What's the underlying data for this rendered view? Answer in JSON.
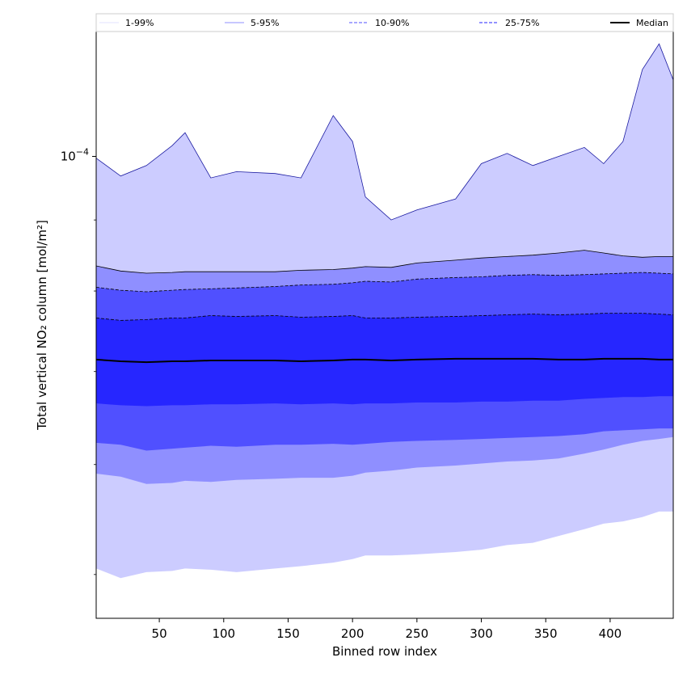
{
  "chart_data": {
    "type": "area",
    "xlabel": "Binned row index",
    "ylabel": "Total vertical NO₂ column [mol/m²]",
    "y_scale": "log",
    "xlim": [
      1,
      449
    ],
    "ylim": [
      4.65e-05,
      0.000123
    ],
    "x_ticks": [
      50,
      100,
      150,
      200,
      250,
      300,
      350,
      400
    ],
    "y_tick_labels": [
      {
        "base": "10",
        "exp": "−4",
        "value": 0.0001
      }
    ],
    "y_minor_ticks": [
      5e-05,
      6e-05,
      7e-05,
      8e-05,
      9e-05
    ],
    "grid": false,
    "legend_position": "top",
    "x": [
      1,
      20,
      40,
      60,
      70,
      90,
      110,
      140,
      160,
      185,
      200,
      210,
      230,
      250,
      280,
      300,
      320,
      340,
      360,
      380,
      395,
      410,
      425,
      438,
      449
    ],
    "series": [
      {
        "name": "1-99%",
        "color": "#ccccff",
        "line_style": "solid",
        "upper": [
          9.97e-05,
          9.68e-05,
          9.85e-05,
          0.0001018,
          0.000104,
          9.65e-05,
          9.75e-05,
          9.72e-05,
          9.65e-05,
          0.000107,
          0.0001025,
          9.35e-05,
          9e-05,
          9.15e-05,
          9.32e-05,
          9.88e-05,
          0.0001005,
          9.85e-05,
          0.0001,
          0.0001015,
          9.88e-05,
          0.0001025,
          0.0001155,
          0.0001205,
          0.0001135
        ],
        "lower": [
          5.05e-05,
          4.97e-05,
          5.02e-05,
          5.03e-05,
          5.05e-05,
          5.04e-05,
          5.02e-05,
          5.05e-05,
          5.07e-05,
          5.1e-05,
          5.13e-05,
          5.16e-05,
          5.16e-05,
          5.17e-05,
          5.19e-05,
          5.21e-05,
          5.25e-05,
          5.27e-05,
          5.33e-05,
          5.39e-05,
          5.44e-05,
          5.46e-05,
          5.5e-05,
          5.55e-05,
          5.55e-05
        ]
      },
      {
        "name": "5-95%",
        "color": "#8f8fff",
        "line_style": "solid",
        "upper": [
          8.34e-05,
          8.27e-05,
          8.24e-05,
          8.25e-05,
          8.26e-05,
          8.26e-05,
          8.26e-05,
          8.26e-05,
          8.28e-05,
          8.29e-05,
          8.31e-05,
          8.33e-05,
          8.32e-05,
          8.38e-05,
          8.42e-05,
          8.45e-05,
          8.47e-05,
          8.49e-05,
          8.52e-05,
          8.56e-05,
          8.52e-05,
          8.48e-05,
          8.46e-05,
          8.47e-05,
          8.47e-05
        ],
        "lower": [
          5.91e-05,
          5.88e-05,
          5.81e-05,
          5.82e-05,
          5.84e-05,
          5.83e-05,
          5.85e-05,
          5.86e-05,
          5.87e-05,
          5.87e-05,
          5.89e-05,
          5.92e-05,
          5.94e-05,
          5.97e-05,
          5.99e-05,
          6.01e-05,
          6.03e-05,
          6.04e-05,
          6.06e-05,
          6.11e-05,
          6.15e-05,
          6.2e-05,
          6.24e-05,
          6.26e-05,
          6.28e-05
        ]
      },
      {
        "name": "10-90%",
        "color": "#5050ff",
        "line_style": "dashed",
        "upper": [
          8.05e-05,
          8.01e-05,
          7.99e-05,
          8.01e-05,
          8.02e-05,
          8.03e-05,
          8.04e-05,
          8.06e-05,
          8.08e-05,
          8.09e-05,
          8.11e-05,
          8.13e-05,
          8.12e-05,
          8.16e-05,
          8.18e-05,
          8.19e-05,
          8.21e-05,
          8.22e-05,
          8.21e-05,
          8.22e-05,
          8.23e-05,
          8.24e-05,
          8.25e-05,
          8.24e-05,
          8.23e-05
        ],
        "lower": [
          6.22e-05,
          6.2e-05,
          6.14e-05,
          6.16e-05,
          6.17e-05,
          6.19e-05,
          6.18e-05,
          6.2e-05,
          6.2e-05,
          6.21e-05,
          6.2e-05,
          6.21e-05,
          6.23e-05,
          6.24e-05,
          6.25e-05,
          6.26e-05,
          6.27e-05,
          6.28e-05,
          6.29e-05,
          6.31e-05,
          6.34e-05,
          6.35e-05,
          6.36e-05,
          6.37e-05,
          6.37e-05
        ]
      },
      {
        "name": "25-75%",
        "color": "#2626ff",
        "line_style": "dashed",
        "upper": [
          7.65e-05,
          7.62e-05,
          7.63e-05,
          7.65e-05,
          7.65e-05,
          7.68e-05,
          7.67e-05,
          7.68e-05,
          7.66e-05,
          7.67e-05,
          7.68e-05,
          7.65e-05,
          7.65e-05,
          7.66e-05,
          7.67e-05,
          7.68e-05,
          7.69e-05,
          7.7e-05,
          7.69e-05,
          7.7e-05,
          7.71e-05,
          7.71e-05,
          7.71e-05,
          7.7e-05,
          7.69e-05
        ],
        "lower": [
          6.64e-05,
          6.62e-05,
          6.61e-05,
          6.62e-05,
          6.62e-05,
          6.63e-05,
          6.63e-05,
          6.64e-05,
          6.63e-05,
          6.64e-05,
          6.63e-05,
          6.64e-05,
          6.64e-05,
          6.65e-05,
          6.65e-05,
          6.66e-05,
          6.66e-05,
          6.67e-05,
          6.67e-05,
          6.69e-05,
          6.7e-05,
          6.71e-05,
          6.71e-05,
          6.72e-05,
          6.72e-05
        ]
      },
      {
        "name": "Median",
        "color": "#000000",
        "line_style": "solid",
        "values": [
          7.14e-05,
          7.12e-05,
          7.11e-05,
          7.12e-05,
          7.12e-05,
          7.13e-05,
          7.13e-05,
          7.13e-05,
          7.12e-05,
          7.13e-05,
          7.14e-05,
          7.14e-05,
          7.13e-05,
          7.14e-05,
          7.15e-05,
          7.15e-05,
          7.15e-05,
          7.15e-05,
          7.14e-05,
          7.14e-05,
          7.15e-05,
          7.15e-05,
          7.15e-05,
          7.14e-05,
          7.14e-05
        ]
      }
    ]
  }
}
